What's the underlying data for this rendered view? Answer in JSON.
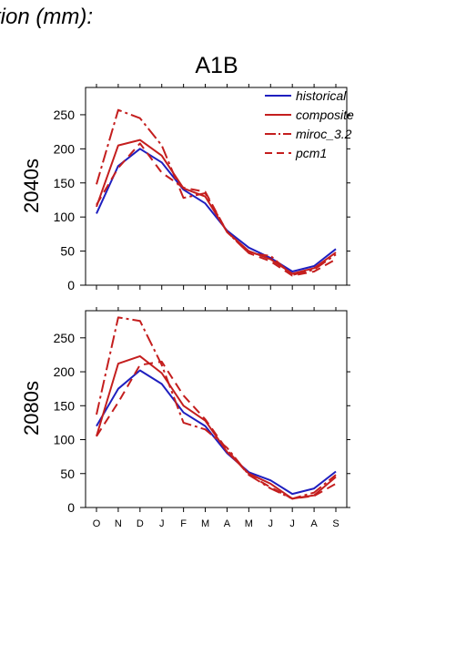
{
  "header_text": "tion (mm):",
  "scenario_title": "A1B",
  "colors": {
    "historical": "#1f1fbf",
    "model": "#c41e1e",
    "axis": "#000000"
  },
  "legend": [
    {
      "key": "historical",
      "label": "historical",
      "style": "solid",
      "color": "#1f1fbf"
    },
    {
      "key": "composite",
      "label": "composite",
      "style": "solid",
      "color": "#c41e1e"
    },
    {
      "key": "miroc_3.2",
      "label": "miroc_3.2",
      "style": "dashdot",
      "color": "#c41e1e"
    },
    {
      "key": "pcm1",
      "label": "pcm1",
      "style": "dashed",
      "color": "#c41e1e"
    }
  ],
  "chart_data": [
    {
      "type": "line",
      "panel_label": "2040s",
      "categories": [
        "O",
        "N",
        "D",
        "J",
        "F",
        "M",
        "A",
        "M",
        "J",
        "J",
        "A",
        "S"
      ],
      "ylim": [
        0,
        290
      ],
      "yticks": [
        0,
        50,
        100,
        150,
        200,
        250
      ],
      "legend_position": "top-right",
      "series": [
        {
          "name": "historical",
          "values": [
            105,
            175,
            200,
            180,
            140,
            120,
            80,
            55,
            40,
            20,
            28,
            53
          ]
        },
        {
          "name": "composite",
          "values": [
            115,
            205,
            213,
            190,
            142,
            130,
            78,
            50,
            38,
            17,
            25,
            48
          ]
        },
        {
          "name": "miroc_3.2",
          "values": [
            148,
            257,
            245,
            205,
            128,
            135,
            78,
            47,
            43,
            15,
            23,
            45
          ]
        },
        {
          "name": "pcm1",
          "values": [
            118,
            172,
            208,
            165,
            143,
            137,
            78,
            47,
            35,
            14,
            20,
            38
          ]
        }
      ]
    },
    {
      "type": "line",
      "panel_label": "2080s",
      "categories": [
        "O",
        "N",
        "D",
        "J",
        "F",
        "M",
        "A",
        "M",
        "J",
        "J",
        "A",
        "S"
      ],
      "ylim": [
        0,
        290
      ],
      "yticks": [
        0,
        50,
        100,
        150,
        200,
        250
      ],
      "series": [
        {
          "name": "historical",
          "values": [
            120,
            175,
            202,
            182,
            140,
            120,
            80,
            52,
            40,
            20,
            28,
            53
          ]
        },
        {
          "name": "composite",
          "values": [
            105,
            212,
            223,
            198,
            150,
            128,
            82,
            50,
            35,
            13,
            18,
            45
          ]
        },
        {
          "name": "miroc_3.2",
          "values": [
            137,
            280,
            275,
            210,
            125,
            115,
            88,
            48,
            28,
            13,
            22,
            48
          ]
        },
        {
          "name": "pcm1",
          "values": [
            105,
            155,
            210,
            215,
            165,
            130,
            85,
            48,
            30,
            13,
            17,
            35
          ]
        }
      ]
    }
  ]
}
